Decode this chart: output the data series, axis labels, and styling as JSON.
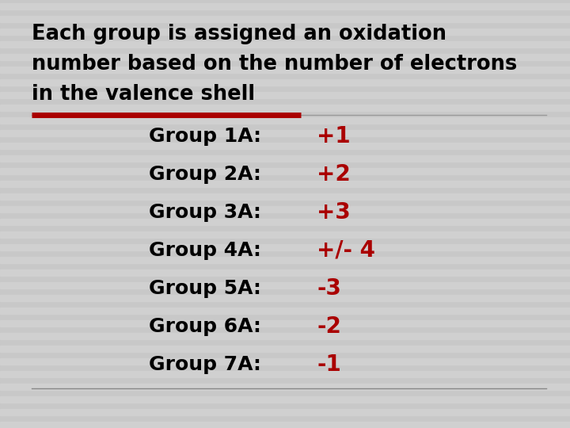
{
  "background_color": "#c8c8c8",
  "stripe_color": "#d0d0d0",
  "title_text_lines": [
    "Each group is assigned an oxidation",
    "number based on the number of electrons",
    "in the valence shell"
  ],
  "title_color": "#000000",
  "title_fontsize": 18.5,
  "red_line_color": "#aa0000",
  "gray_line_color": "#999999",
  "bottom_line_color": "#888888",
  "rows": [
    {
      "label": "Group 1A:",
      "value": "+1",
      "label_color": "#000000",
      "value_color": "#aa0000"
    },
    {
      "label": "Group 2A:",
      "value": "+2",
      "label_color": "#000000",
      "value_color": "#aa0000"
    },
    {
      "label": "Group 3A:",
      "value": "+3",
      "label_color": "#000000",
      "value_color": "#aa0000"
    },
    {
      "label": "Group 4A:",
      "value": "+/- 4",
      "label_color": "#000000",
      "value_color": "#aa0000"
    },
    {
      "label": "Group 5A:",
      "value": "-3",
      "label_color": "#000000",
      "value_color": "#aa0000"
    },
    {
      "label": "Group 6A:",
      "value": "-2",
      "label_color": "#000000",
      "value_color": "#aa0000"
    },
    {
      "label": "Group 7A:",
      "value": "-1",
      "label_color": "#000000",
      "value_color": "#aa0000"
    }
  ],
  "label_fontsize": 18,
  "value_fontsize": 20,
  "figsize": [
    7.2,
    5.4
  ],
  "dpi": 100
}
